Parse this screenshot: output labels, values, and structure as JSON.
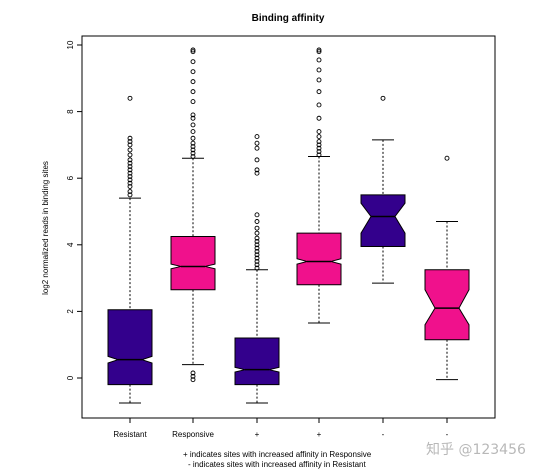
{
  "chart_data": {
    "type": "box",
    "title": "Binding affinity",
    "ylabel": "log2 normalized reads in binding sites",
    "xlabel": "",
    "ylim": [
      -1.2,
      10.2
    ],
    "yticks": [
      0,
      2,
      4,
      6,
      8,
      10
    ],
    "categories": [
      "Resistant",
      "Responsive",
      "+",
      "+",
      "-",
      "-"
    ],
    "boxes": [
      {
        "label": "Resistant",
        "color": "#33008c",
        "min": -0.75,
        "q1": -0.2,
        "median": 0.55,
        "q3": 2.05,
        "max": 5.4,
        "notch": [
          0.45,
          0.65
        ],
        "outliers": [
          5.5,
          5.6,
          5.75,
          5.85,
          5.95,
          6.05,
          6.15,
          6.25,
          6.35,
          6.45,
          6.55,
          6.7,
          6.85,
          7.0,
          7.1,
          7.2,
          8.4
        ]
      },
      {
        "label": "Responsive",
        "color": "#f0118c",
        "min": 0.4,
        "q1": 2.65,
        "median": 3.35,
        "q3": 4.25,
        "max": 6.6,
        "notch": [
          3.28,
          3.42
        ],
        "outliers": [
          -0.05,
          0.05,
          0.15,
          6.65,
          6.75,
          6.85,
          6.95,
          7.05,
          7.2,
          7.4,
          7.6,
          7.8,
          7.9,
          8.3,
          8.6,
          8.9,
          9.2,
          9.5,
          9.8,
          9.85
        ]
      },
      {
        "label": "+",
        "color": "#33008c",
        "min": -0.75,
        "q1": -0.2,
        "median": 0.25,
        "q3": 1.2,
        "max": 3.25,
        "notch": [
          0.18,
          0.32
        ],
        "outliers": [
          3.3,
          3.4,
          3.5,
          3.6,
          3.7,
          3.8,
          3.9,
          4.0,
          4.1,
          4.2,
          4.35,
          4.5,
          4.7,
          4.9,
          6.15,
          6.25,
          6.55,
          6.9,
          7.05,
          7.25
        ]
      },
      {
        "label": "+",
        "color": "#f0118c",
        "min": 1.65,
        "q1": 2.8,
        "median": 3.5,
        "q3": 4.35,
        "max": 6.65,
        "notch": [
          3.42,
          3.58
        ],
        "outliers": [
          6.7,
          6.8,
          6.9,
          7.0,
          7.1,
          7.25,
          7.4,
          7.8,
          8.2,
          8.6,
          8.95,
          9.25,
          9.55,
          9.8,
          9.85
        ]
      },
      {
        "label": "-",
        "color": "#33008c",
        "min": 2.85,
        "q1": 3.95,
        "median": 4.85,
        "q3": 5.5,
        "max": 7.15,
        "notch": [
          4.35,
          5.25
        ],
        "outliers": [
          8.4
        ]
      },
      {
        "label": "-",
        "color": "#f0118c",
        "min": -0.05,
        "q1": 1.15,
        "median": 2.1,
        "q3": 3.25,
        "max": 4.7,
        "notch": [
          1.6,
          2.65
        ],
        "outliers": [
          6.6
        ]
      }
    ],
    "notes": [
      "+ indicates sites with increased affinity in Responsive",
      "- indicates sites with increased affinity in Resistant"
    ],
    "grid": false
  },
  "watermark": "知乎 @123456"
}
